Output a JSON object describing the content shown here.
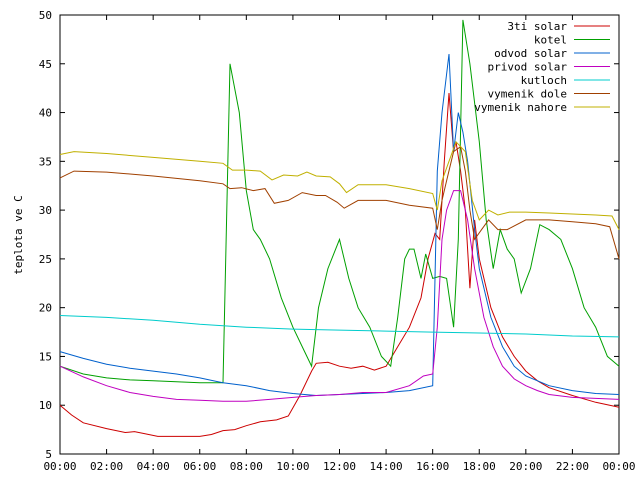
{
  "chart_data": {
    "type": "line",
    "title": "",
    "xlabel": "",
    "ylabel": "teplota ve C",
    "xlim": [
      0,
      24
    ],
    "ylim": [
      5,
      50
    ],
    "xticks": [
      0,
      2,
      4,
      6,
      8,
      10,
      12,
      14,
      16,
      18,
      20,
      22,
      24
    ],
    "xtick_labels": [
      "00:00",
      "02:00",
      "04:00",
      "06:00",
      "08:00",
      "10:00",
      "12:00",
      "14:00",
      "16:00",
      "18:00",
      "20:00",
      "22:00",
      "00:00"
    ],
    "yticks": [
      5,
      10,
      15,
      20,
      25,
      30,
      35,
      40,
      45,
      50
    ],
    "ytick_labels": [
      "5",
      "10",
      "15",
      "20",
      "25",
      "30",
      "35",
      "40",
      "45",
      "50"
    ],
    "grid": false,
    "legend_position": "top-right",
    "series": [
      {
        "name": "3ti solar",
        "color": "#cc0000",
        "points": [
          [
            0,
            10
          ],
          [
            0.5,
            9
          ],
          [
            1,
            8.2
          ],
          [
            2,
            7.6
          ],
          [
            2.8,
            7.2
          ],
          [
            3.2,
            7.3
          ],
          [
            3.6,
            7.1
          ],
          [
            4.2,
            6.8
          ],
          [
            5,
            6.8
          ],
          [
            6,
            6.8
          ],
          [
            6.5,
            7
          ],
          [
            7,
            7.4
          ],
          [
            7.5,
            7.5
          ],
          [
            8,
            7.9
          ],
          [
            8.6,
            8.3
          ],
          [
            9.3,
            8.5
          ],
          [
            9.8,
            8.9
          ],
          [
            10.3,
            11
          ],
          [
            10.8,
            13.5
          ],
          [
            11,
            14.3
          ],
          [
            11.5,
            14.4
          ],
          [
            12,
            14
          ],
          [
            12.5,
            13.8
          ],
          [
            13,
            14
          ],
          [
            13.5,
            13.6
          ],
          [
            14,
            14
          ],
          [
            14.5,
            16
          ],
          [
            15,
            18
          ],
          [
            15.5,
            21
          ],
          [
            15.8,
            25
          ],
          [
            16.1,
            27.6
          ],
          [
            16.3,
            27
          ],
          [
            16.5,
            35
          ],
          [
            16.7,
            42
          ],
          [
            16.9,
            36
          ],
          [
            17,
            37
          ],
          [
            17.2,
            34
          ],
          [
            17.4,
            30
          ],
          [
            17.6,
            22
          ],
          [
            17.8,
            29
          ],
          [
            18,
            25
          ],
          [
            18.5,
            20
          ],
          [
            19,
            17
          ],
          [
            19.5,
            15
          ],
          [
            20,
            13.5
          ],
          [
            20.5,
            12.5
          ],
          [
            21,
            11.8
          ],
          [
            22,
            11
          ],
          [
            23,
            10.3
          ],
          [
            24,
            9.8
          ]
        ]
      },
      {
        "name": "kotel",
        "color": "#00a000",
        "points": [
          [
            0,
            14
          ],
          [
            1,
            13.2
          ],
          [
            2,
            12.8
          ],
          [
            3,
            12.6
          ],
          [
            4,
            12.5
          ],
          [
            5,
            12.4
          ],
          [
            6,
            12.3
          ],
          [
            7,
            12.3
          ],
          [
            7.3,
            45
          ],
          [
            7.7,
            40
          ],
          [
            8,
            32
          ],
          [
            8.3,
            28
          ],
          [
            8.6,
            27
          ],
          [
            9,
            25
          ],
          [
            9.5,
            21
          ],
          [
            10,
            18
          ],
          [
            10.5,
            15.5
          ],
          [
            10.8,
            14
          ],
          [
            11.1,
            20
          ],
          [
            11.5,
            24
          ],
          [
            12,
            27
          ],
          [
            12.4,
            23
          ],
          [
            12.8,
            20
          ],
          [
            13.3,
            18
          ],
          [
            13.8,
            15
          ],
          [
            14.2,
            14
          ],
          [
            14.5,
            19
          ],
          [
            14.8,
            25
          ],
          [
            15,
            26
          ],
          [
            15.2,
            26
          ],
          [
            15.5,
            23
          ],
          [
            15.7,
            25.5
          ],
          [
            16,
            23
          ],
          [
            16.3,
            23.2
          ],
          [
            16.6,
            23
          ],
          [
            16.9,
            18
          ],
          [
            17.1,
            27
          ],
          [
            17.3,
            49.5
          ],
          [
            17.6,
            45
          ],
          [
            18,
            37
          ],
          [
            18.3,
            29
          ],
          [
            18.6,
            24
          ],
          [
            18.9,
            28
          ],
          [
            19.2,
            26
          ],
          [
            19.5,
            25
          ],
          [
            19.8,
            21.5
          ],
          [
            20.2,
            24
          ],
          [
            20.6,
            28.5
          ],
          [
            21,
            28
          ],
          [
            21.5,
            27
          ],
          [
            22,
            24
          ],
          [
            22.5,
            20
          ],
          [
            23,
            18
          ],
          [
            23.5,
            15
          ],
          [
            24,
            14
          ]
        ]
      },
      {
        "name": "odvod solar",
        "color": "#0060cc",
        "points": [
          [
            0,
            15.5
          ],
          [
            1,
            14.8
          ],
          [
            2,
            14.2
          ],
          [
            3,
            13.8
          ],
          [
            4,
            13.5
          ],
          [
            5,
            13.2
          ],
          [
            6,
            12.8
          ],
          [
            7,
            12.3
          ],
          [
            8,
            12
          ],
          [
            9,
            11.5
          ],
          [
            10,
            11.2
          ],
          [
            11,
            11
          ],
          [
            12,
            11.1
          ],
          [
            13,
            11.2
          ],
          [
            14,
            11.3
          ],
          [
            15,
            11.5
          ],
          [
            16,
            12
          ],
          [
            16.2,
            34
          ],
          [
            16.4,
            40
          ],
          [
            16.7,
            46
          ],
          [
            16.9,
            36
          ],
          [
            17.1,
            40
          ],
          [
            17.3,
            38
          ],
          [
            17.5,
            35
          ],
          [
            17.8,
            28
          ],
          [
            18,
            24
          ],
          [
            18.5,
            19
          ],
          [
            19,
            16
          ],
          [
            19.5,
            14
          ],
          [
            20,
            13
          ],
          [
            20.5,
            12.5
          ],
          [
            21,
            12
          ],
          [
            22,
            11.5
          ],
          [
            23,
            11.2
          ],
          [
            24,
            11.1
          ]
        ]
      },
      {
        "name": "privod solar",
        "color": "#c000c0",
        "points": [
          [
            0,
            14
          ],
          [
            1,
            12.9
          ],
          [
            2,
            12
          ],
          [
            3,
            11.3
          ],
          [
            4,
            10.9
          ],
          [
            5,
            10.6
          ],
          [
            6,
            10.5
          ],
          [
            7,
            10.4
          ],
          [
            8,
            10.4
          ],
          [
            9,
            10.6
          ],
          [
            10,
            10.8
          ],
          [
            11,
            11
          ],
          [
            12,
            11.1
          ],
          [
            13,
            11.3
          ],
          [
            14,
            11.3
          ],
          [
            15,
            12
          ],
          [
            15.6,
            13
          ],
          [
            16,
            13.2
          ],
          [
            16.2,
            18
          ],
          [
            16.4,
            27
          ],
          [
            16.6,
            30
          ],
          [
            16.9,
            32
          ],
          [
            17.2,
            32
          ],
          [
            17.5,
            29
          ],
          [
            17.8,
            24
          ],
          [
            18.2,
            19
          ],
          [
            18.6,
            16
          ],
          [
            19,
            14
          ],
          [
            19.5,
            12.7
          ],
          [
            20,
            12
          ],
          [
            20.5,
            11.5
          ],
          [
            21,
            11.1
          ],
          [
            22,
            10.8
          ],
          [
            23,
            10.7
          ],
          [
            24,
            10.6
          ]
        ]
      },
      {
        "name": "kutloch",
        "color": "#00cccc",
        "points": [
          [
            0,
            19.2
          ],
          [
            2,
            19
          ],
          [
            4,
            18.7
          ],
          [
            6,
            18.3
          ],
          [
            8,
            18
          ],
          [
            10,
            17.8
          ],
          [
            12,
            17.7
          ],
          [
            14,
            17.6
          ],
          [
            16,
            17.5
          ],
          [
            18,
            17.4
          ],
          [
            20,
            17.3
          ],
          [
            22,
            17.1
          ],
          [
            24,
            17
          ]
        ]
      },
      {
        "name": "vymenik dole",
        "color": "#a04000",
        "points": [
          [
            0,
            33.3
          ],
          [
            0.6,
            34
          ],
          [
            2,
            33.9
          ],
          [
            4,
            33.5
          ],
          [
            6,
            33
          ],
          [
            7,
            32.7
          ],
          [
            7.3,
            32.2
          ],
          [
            7.8,
            32.3
          ],
          [
            8.3,
            32
          ],
          [
            8.8,
            32.2
          ],
          [
            9.2,
            30.7
          ],
          [
            9.8,
            31
          ],
          [
            10.4,
            31.8
          ],
          [
            11,
            31.5
          ],
          [
            11.4,
            31.5
          ],
          [
            11.9,
            30.8
          ],
          [
            12.2,
            30.2
          ],
          [
            12.8,
            31
          ],
          [
            13.5,
            31
          ],
          [
            14,
            31
          ],
          [
            15,
            30.5
          ],
          [
            16,
            30.2
          ],
          [
            16.2,
            28
          ],
          [
            16.4,
            31
          ],
          [
            16.6,
            33
          ],
          [
            16.9,
            36
          ],
          [
            17.2,
            36.5
          ],
          [
            17.4,
            34
          ],
          [
            17.6,
            30
          ],
          [
            17.8,
            27
          ],
          [
            18.1,
            28
          ],
          [
            18.4,
            29
          ],
          [
            18.8,
            28
          ],
          [
            19.2,
            28
          ],
          [
            20,
            29
          ],
          [
            21,
            29
          ],
          [
            22,
            28.8
          ],
          [
            23,
            28.6
          ],
          [
            23.6,
            28.3
          ],
          [
            24,
            25
          ]
        ]
      },
      {
        "name": "vymenik nahore",
        "color": "#c0b000",
        "points": [
          [
            0,
            35.7
          ],
          [
            0.6,
            36
          ],
          [
            2,
            35.8
          ],
          [
            4,
            35.4
          ],
          [
            6,
            35
          ],
          [
            7,
            34.8
          ],
          [
            7.4,
            34.1
          ],
          [
            8,
            34.1
          ],
          [
            8.6,
            34
          ],
          [
            9.1,
            33.1
          ],
          [
            9.6,
            33.6
          ],
          [
            10.2,
            33.5
          ],
          [
            10.6,
            33.9
          ],
          [
            11,
            33.5
          ],
          [
            11.6,
            33.4
          ],
          [
            12,
            32.7
          ],
          [
            12.3,
            31.8
          ],
          [
            12.8,
            32.6
          ],
          [
            14,
            32.6
          ],
          [
            15,
            32.2
          ],
          [
            16,
            31.7
          ],
          [
            16.2,
            30
          ],
          [
            16.4,
            33
          ],
          [
            16.7,
            35
          ],
          [
            17,
            37
          ],
          [
            17.4,
            36
          ],
          [
            17.7,
            31
          ],
          [
            18,
            29
          ],
          [
            18.4,
            30
          ],
          [
            18.8,
            29.5
          ],
          [
            19.3,
            29.8
          ],
          [
            20,
            29.8
          ],
          [
            21,
            29.7
          ],
          [
            22,
            29.6
          ],
          [
            23,
            29.5
          ],
          [
            23.7,
            29.4
          ],
          [
            24,
            28
          ]
        ]
      }
    ]
  }
}
